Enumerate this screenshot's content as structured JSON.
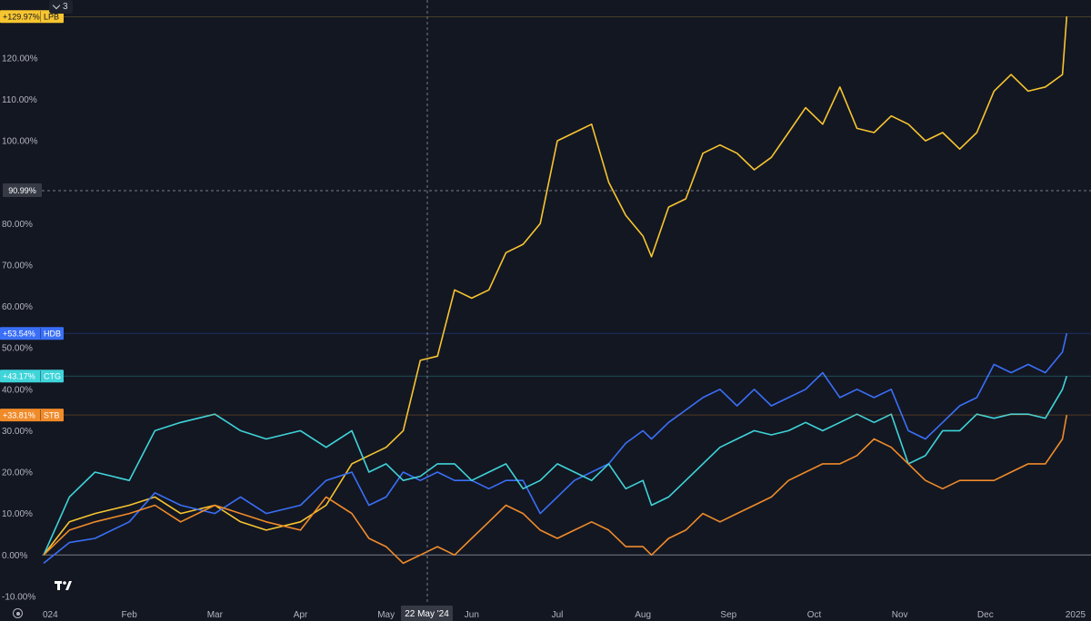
{
  "compare": {
    "count": "3"
  },
  "crosshair": {
    "y_label": "90.99%",
    "x_label": "22 May '24"
  },
  "chart_data": {
    "type": "line",
    "ylim": [
      -12,
      134
    ],
    "xlim": [
      0,
      12
    ],
    "y_ticks": [
      -10,
      0,
      10,
      20,
      30,
      40,
      50,
      60,
      70,
      80,
      90,
      100,
      110,
      120
    ],
    "y_tick_labels": [
      "-10.00%",
      "0.00%",
      "10.00%",
      "20.00%",
      "30.00%",
      "40.00%",
      "50.00%",
      "60.00%",
      "70.00%",
      "80.00%",
      "100.00%",
      "110.00%",
      "120.00%"
    ],
    "x_tick_labels": [
      {
        "label": "024",
        "x": 0.0
      },
      {
        "label": "Feb",
        "x": 1.0
      },
      {
        "label": "Mar",
        "x": 2.0
      },
      {
        "label": "Apr",
        "x": 3.0
      },
      {
        "label": "May",
        "x": 4.0
      },
      {
        "label": "Jun",
        "x": 5.0
      },
      {
        "label": "Jul",
        "x": 6.0
      },
      {
        "label": "Aug",
        "x": 7.0
      },
      {
        "label": "Sep",
        "x": 8.0
      },
      {
        "label": "Oct",
        "x": 9.0
      },
      {
        "label": "Nov",
        "x": 10.0
      },
      {
        "label": "Dec",
        "x": 11.0
      },
      {
        "label": "2025",
        "x": 12.0
      }
    ],
    "series": [
      {
        "name": "LPB",
        "color": "#f7c530",
        "last_label": "+129.97%",
        "x": [
          0.0,
          0.3,
          0.6,
          1.0,
          1.3,
          1.6,
          2.0,
          2.3,
          2.6,
          3.0,
          3.3,
          3.6,
          3.8,
          4.0,
          4.2,
          4.4,
          4.6,
          4.8,
          5.0,
          5.2,
          5.4,
          5.6,
          5.8,
          6.0,
          6.2,
          6.4,
          6.6,
          6.8,
          7.0,
          7.1,
          7.3,
          7.5,
          7.7,
          7.9,
          8.1,
          8.3,
          8.5,
          8.7,
          8.9,
          9.1,
          9.3,
          9.5,
          9.7,
          9.9,
          10.1,
          10.3,
          10.5,
          10.7,
          10.9,
          11.1,
          11.3,
          11.5,
          11.7,
          11.9,
          11.95
        ],
        "y": [
          0,
          8,
          10,
          12,
          14,
          10,
          12,
          8,
          6,
          8,
          12,
          22,
          24,
          26,
          30,
          47,
          48,
          64,
          62,
          64,
          73,
          75,
          80,
          100,
          102,
          104,
          90,
          82,
          77,
          72,
          84,
          86,
          97,
          99,
          97,
          93,
          96,
          102,
          108,
          104,
          113,
          103,
          102,
          106,
          104,
          100,
          102,
          98,
          102,
          112,
          116,
          112,
          113,
          116,
          130
        ]
      },
      {
        "name": "HDB",
        "color": "#3a6ff7",
        "last_label": "+53.54%",
        "x": [
          0.0,
          0.3,
          0.6,
          1.0,
          1.3,
          1.6,
          2.0,
          2.3,
          2.6,
          3.0,
          3.3,
          3.6,
          3.8,
          4.0,
          4.2,
          4.4,
          4.6,
          4.8,
          5.0,
          5.2,
          5.4,
          5.6,
          5.8,
          6.0,
          6.2,
          6.4,
          6.6,
          6.8,
          7.0,
          7.1,
          7.3,
          7.5,
          7.7,
          7.9,
          8.1,
          8.3,
          8.5,
          8.7,
          8.9,
          9.1,
          9.3,
          9.5,
          9.7,
          9.9,
          10.1,
          10.3,
          10.5,
          10.7,
          10.9,
          11.1,
          11.3,
          11.5,
          11.7,
          11.9,
          11.95
        ],
        "y": [
          -2,
          3,
          4,
          8,
          15,
          12,
          10,
          14,
          10,
          12,
          18,
          20,
          12,
          14,
          20,
          18,
          20,
          18,
          18,
          16,
          18,
          18,
          10,
          14,
          18,
          20,
          22,
          27,
          30,
          28,
          32,
          35,
          38,
          40,
          36,
          40,
          36,
          38,
          40,
          44,
          38,
          40,
          38,
          40,
          30,
          28,
          32,
          36,
          38,
          46,
          44,
          46,
          44,
          49,
          53.5
        ]
      },
      {
        "name": "CTG",
        "color": "#3fd4d9",
        "last_label": "+43.17%",
        "x": [
          0.0,
          0.3,
          0.6,
          1.0,
          1.3,
          1.6,
          2.0,
          2.3,
          2.6,
          3.0,
          3.3,
          3.6,
          3.8,
          4.0,
          4.2,
          4.4,
          4.6,
          4.8,
          5.0,
          5.2,
          5.4,
          5.6,
          5.8,
          6.0,
          6.2,
          6.4,
          6.6,
          6.8,
          7.0,
          7.1,
          7.3,
          7.5,
          7.7,
          7.9,
          8.1,
          8.3,
          8.5,
          8.7,
          8.9,
          9.1,
          9.3,
          9.5,
          9.7,
          9.9,
          10.1,
          10.3,
          10.5,
          10.7,
          10.9,
          11.1,
          11.3,
          11.5,
          11.7,
          11.9,
          11.95
        ],
        "y": [
          0,
          14,
          20,
          18,
          30,
          32,
          34,
          30,
          28,
          30,
          26,
          30,
          20,
          22,
          18,
          19,
          22,
          22,
          18,
          20,
          22,
          16,
          18,
          22,
          20,
          18,
          22,
          16,
          18,
          12,
          14,
          18,
          22,
          26,
          28,
          30,
          29,
          30,
          32,
          30,
          32,
          34,
          32,
          34,
          22,
          24,
          30,
          30,
          34,
          33,
          34,
          34,
          33,
          40,
          43.2
        ]
      },
      {
        "name": "STB",
        "color": "#f08b2a",
        "last_label": "+33.81%",
        "x": [
          0.0,
          0.3,
          0.6,
          1.0,
          1.3,
          1.6,
          2.0,
          2.3,
          2.6,
          3.0,
          3.3,
          3.6,
          3.8,
          4.0,
          4.2,
          4.4,
          4.6,
          4.8,
          5.0,
          5.2,
          5.4,
          5.6,
          5.8,
          6.0,
          6.2,
          6.4,
          6.6,
          6.8,
          7.0,
          7.1,
          7.3,
          7.5,
          7.7,
          7.9,
          8.1,
          8.3,
          8.5,
          8.7,
          8.9,
          9.1,
          9.3,
          9.5,
          9.7,
          9.9,
          10.1,
          10.3,
          10.5,
          10.7,
          10.9,
          11.1,
          11.3,
          11.5,
          11.7,
          11.9,
          11.95
        ],
        "y": [
          0,
          6,
          8,
          10,
          12,
          8,
          12,
          10,
          8,
          6,
          14,
          10,
          4,
          2,
          -2,
          0,
          2,
          0,
          4,
          8,
          12,
          10,
          6,
          4,
          6,
          8,
          6,
          2,
          2,
          0,
          4,
          6,
          10,
          8,
          10,
          12,
          14,
          18,
          20,
          22,
          22,
          24,
          28,
          26,
          22,
          18,
          16,
          18,
          18,
          18,
          20,
          22,
          22,
          28,
          33.8
        ]
      }
    ]
  }
}
